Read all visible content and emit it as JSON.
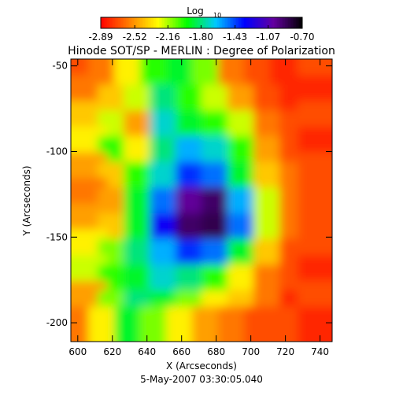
{
  "chart_data": {
    "type": "heatmap",
    "title": "Hinode SOT/SP - MERLIN : Degree of Polarization",
    "x_label": "X (Arcseconds)",
    "y_label": "Y (Arcseconds)",
    "footer": "5-May-2007 03:30:05.040",
    "colorbar_label": "Log",
    "colorbar_label_sub": "10",
    "zlim": [
      -2.89,
      -0.7
    ],
    "zticks": [
      -2.89,
      -2.52,
      -2.16,
      {
        "value": -1.8,
        "label": "-1.80"
      },
      -1.43,
      -1.07,
      {
        "value": -0.7,
        "label": "-0.70"
      }
    ],
    "colormap": [
      "#ff0000",
      "#ff8000",
      "#ffff00",
      "#00ff00",
      "#00c8ff",
      "#0000ff",
      "#6400a0",
      "#000000"
    ],
    "xlim": [
      596,
      747
    ],
    "ylim": [
      -211,
      -46
    ],
    "xticks": [
      600,
      620,
      640,
      660,
      680,
      700,
      720,
      740
    ],
    "yticks": [
      -50,
      -100,
      -150,
      -200
    ],
    "x": [
      604,
      619,
      634,
      649,
      664,
      679,
      694,
      709,
      724,
      740
    ],
    "y": [
      -53.5,
      -68.5,
      -83.5,
      -98.5,
      -113.5,
      -128.5,
      -143.5,
      -158.5,
      -173.5,
      -188.5,
      -203.5
    ],
    "z": [
      [
        -2.7,
        -2.6,
        -2.3,
        -2.0,
        -1.9,
        -2.1,
        -2.6,
        -2.7,
        -2.8,
        -2.7
      ],
      [
        -2.6,
        -2.4,
        -2.2,
        -1.8,
        -2.0,
        -2.2,
        -2.5,
        -2.7,
        -2.8,
        -2.8
      ],
      [
        -2.4,
        -2.2,
        -2.5,
        -1.7,
        -1.9,
        -2.0,
        -2.2,
        -2.6,
        -2.7,
        -2.7
      ],
      [
        -2.3,
        -2.0,
        -2.3,
        -1.8,
        -1.6,
        -1.7,
        -2.0,
        -2.5,
        -2.7,
        -2.8
      ],
      [
        -2.5,
        -2.4,
        -2.0,
        -1.7,
        -1.4,
        -1.5,
        -1.9,
        -2.4,
        -2.6,
        -2.7
      ],
      [
        -2.6,
        -2.5,
        -1.9,
        -1.5,
        -1.0,
        -0.9,
        -1.6,
        -2.2,
        -2.6,
        -2.7
      ],
      [
        -2.5,
        -2.4,
        -1.9,
        -1.3,
        -0.9,
        -0.85,
        -1.5,
        -2.2,
        -2.6,
        -2.7
      ],
      [
        -2.3,
        -2.1,
        -1.8,
        -1.6,
        -1.4,
        -1.5,
        -1.9,
        -2.4,
        -2.7,
        -2.7
      ],
      [
        -2.2,
        -2.0,
        -1.9,
        -1.7,
        -1.8,
        -2.0,
        -2.3,
        -2.6,
        -2.7,
        -2.8
      ],
      [
        -2.5,
        -2.1,
        -1.8,
        -1.9,
        -2.1,
        -2.3,
        -2.4,
        -2.6,
        -2.8,
        -2.7
      ],
      [
        -2.6,
        -2.3,
        -1.9,
        -2.1,
        -2.3,
        -2.5,
        -2.6,
        -2.7,
        -2.7,
        -2.8
      ]
    ]
  }
}
